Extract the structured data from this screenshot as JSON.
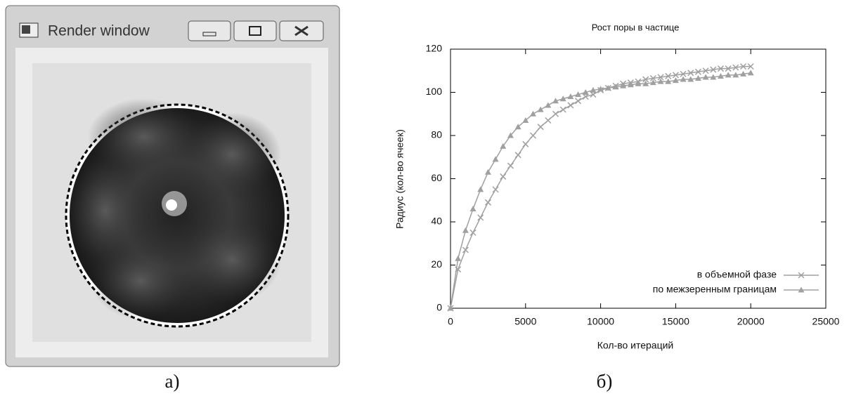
{
  "window": {
    "title": "Render window"
  },
  "captions": [
    "а)",
    "б)"
  ],
  "chart_data": {
    "type": "line",
    "title": "Рост поры в частице",
    "x_label": "Кол-во итераций",
    "y_label": "Радиус (кол-во ячеек)",
    "x": [
      0,
      500,
      1000,
      1500,
      2000,
      2500,
      3000,
      3500,
      4000,
      4500,
      5000,
      5500,
      6000,
      6500,
      7000,
      7500,
      8000,
      8500,
      9000,
      9500,
      10000,
      10500,
      11000,
      11500,
      12000,
      12500,
      13000,
      13500,
      14000,
      14500,
      15000,
      15500,
      16000,
      16500,
      17000,
      17500,
      18000,
      18500,
      19000,
      19500,
      20000
    ],
    "series": [
      {
        "name": "в  объемной фазе",
        "color": "#a0a0a0",
        "marker": "x",
        "values": [
          0,
          18,
          27,
          35,
          42,
          49,
          55,
          61,
          66,
          71,
          76,
          80,
          84,
          87,
          90,
          92,
          94,
          96,
          98,
          99,
          101,
          102,
          103,
          104,
          104.5,
          105,
          106,
          106.5,
          107,
          107.5,
          108,
          108.5,
          109,
          109.5,
          110,
          110.5,
          111,
          111,
          111.5,
          112,
          112
        ]
      },
      {
        "name": "по межзеренным границам",
        "color": "#a0a0a0",
        "marker": "triangle",
        "values": [
          0,
          23,
          36,
          46,
          55,
          63,
          69,
          75,
          80,
          84,
          87,
          90,
          92,
          94,
          96,
          97,
          98,
          99,
          100,
          101,
          101.5,
          102,
          102.5,
          103,
          103.5,
          104,
          104,
          104.5,
          105,
          105,
          105.5,
          106,
          106,
          106.5,
          107,
          107,
          107.5,
          108,
          108,
          108.5,
          109
        ]
      }
    ],
    "xlim": [
      0,
      25000
    ],
    "xticks": [
      0,
      5000,
      10000,
      15000,
      20000,
      25000
    ],
    "ylim": [
      0,
      120
    ],
    "yticks": [
      0,
      20,
      40,
      60,
      80,
      100,
      120
    ],
    "grid": false,
    "legend": "lower right"
  }
}
